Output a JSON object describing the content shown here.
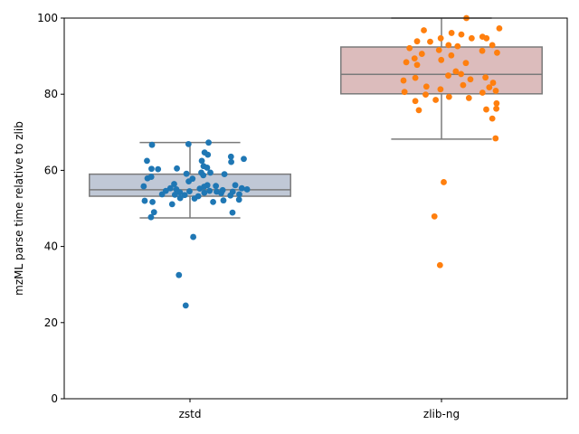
{
  "chart_data": {
    "type": "box",
    "title": "",
    "xlabel": "",
    "ylabel": "mzML parse time relative to zlib",
    "ylim": [
      0,
      100
    ],
    "yticks": [
      0,
      20,
      40,
      60,
      80,
      100
    ],
    "grid": false,
    "categories": [
      "zstd",
      "zlib-ng"
    ],
    "series": [
      {
        "category": "zstd",
        "box_color": "#c0c8d6",
        "point_color": "#1f77b4",
        "whisker_low": 47.5,
        "q1": 53.2,
        "median": 54.9,
        "q3": 59.0,
        "whisker_high": 67.3,
        "points": [
          [
            -0.151,
            66.7
          ],
          [
            -0.006,
            66.9
          ],
          [
            0.074,
            67.3
          ],
          [
            0.071,
            64.1
          ],
          [
            0.058,
            64.7
          ],
          [
            0.163,
            63.6
          ],
          [
            0.214,
            63.0
          ],
          [
            -0.171,
            62.5
          ],
          [
            0.164,
            62.2
          ],
          [
            0.047,
            62.5
          ],
          [
            0.054,
            61.1
          ],
          [
            0.068,
            60.7
          ],
          [
            -0.052,
            60.5
          ],
          [
            -0.127,
            60.3
          ],
          [
            -0.153,
            60.4
          ],
          [
            0.045,
            59.4
          ],
          [
            -0.014,
            59.1
          ],
          [
            0.081,
            59.4
          ],
          [
            0.137,
            59.0
          ],
          [
            0.053,
            58.7
          ],
          [
            -0.154,
            58.3
          ],
          [
            -0.169,
            57.9
          ],
          [
            0.01,
            57.8
          ],
          [
            -0.005,
            57.1
          ],
          [
            -0.063,
            56.4
          ],
          [
            0.069,
            56.1
          ],
          [
            0.103,
            55.9
          ],
          [
            0.18,
            56.1
          ],
          [
            -0.184,
            55.8
          ],
          [
            0.056,
            55.7
          ],
          [
            -0.078,
            55.3
          ],
          [
            0.039,
            55.2
          ],
          [
            0.206,
            55.3
          ],
          [
            0.227,
            55.0
          ],
          [
            -0.054,
            55.0
          ],
          [
            -0.096,
            54.6
          ],
          [
            0.13,
            54.8
          ],
          [
            0.078,
            54.6
          ],
          [
            -0.002,
            54.5
          ],
          [
            0.106,
            54.4
          ],
          [
            0.17,
            54.4
          ],
          [
            -0.04,
            54.2
          ],
          [
            0.057,
            54.1
          ],
          [
            0.124,
            54.0
          ],
          [
            -0.06,
            53.6
          ],
          [
            -0.111,
            53.7
          ],
          [
            0.196,
            53.7
          ],
          [
            -0.021,
            53.5
          ],
          [
            0.161,
            53.4
          ],
          [
            0.033,
            53.2
          ],
          [
            -0.039,
            52.7
          ],
          [
            0.018,
            52.6
          ],
          [
            0.195,
            52.3
          ],
          [
            -0.18,
            52.0
          ],
          [
            -0.149,
            51.7
          ],
          [
            0.092,
            51.7
          ],
          [
            0.133,
            52.1
          ],
          [
            -0.071,
            51.1
          ],
          [
            0.169,
            48.9
          ],
          [
            -0.143,
            49.0
          ],
          [
            -0.155,
            47.7
          ],
          [
            0.013,
            42.5
          ],
          [
            -0.044,
            32.5
          ],
          [
            -0.017,
            24.5
          ]
        ]
      },
      {
        "category": "zlib-ng",
        "box_color": "#dcbcbc",
        "point_color": "#ff7f0e",
        "whisker_low": 68.2,
        "q1": 80.1,
        "median": 85.2,
        "q3": 92.4,
        "whisker_high": 100.0,
        "points": [
          [
            0.099,
            100.0
          ],
          [
            0.23,
            97.3
          ],
          [
            -0.07,
            96.8
          ],
          [
            0.04,
            96.1
          ],
          [
            0.079,
            95.7
          ],
          [
            0.163,
            95.1
          ],
          [
            -0.003,
            94.7
          ],
          [
            0.12,
            94.7
          ],
          [
            0.179,
            94.7
          ],
          [
            -0.097,
            93.9
          ],
          [
            -0.045,
            93.8
          ],
          [
            0.028,
            92.9
          ],
          [
            0.202,
            92.9
          ],
          [
            0.064,
            92.6
          ],
          [
            -0.127,
            92.1
          ],
          [
            -0.01,
            91.6
          ],
          [
            0.162,
            91.4
          ],
          [
            0.221,
            90.9
          ],
          [
            -0.078,
            90.6
          ],
          [
            0.039,
            90.2
          ],
          [
            -0.107,
            89.4
          ],
          [
            -0.001,
            89.0
          ],
          [
            -0.14,
            88.4
          ],
          [
            0.097,
            88.2
          ],
          [
            -0.097,
            87.7
          ],
          [
            0.057,
            86.0
          ],
          [
            0.078,
            85.3
          ],
          [
            0.027,
            84.9
          ],
          [
            0.175,
            84.4
          ],
          [
            -0.104,
            84.3
          ],
          [
            0.115,
            83.9
          ],
          [
            -0.151,
            83.6
          ],
          [
            0.205,
            83.0
          ],
          [
            0.086,
            82.4
          ],
          [
            -0.06,
            82.0
          ],
          [
            0.19,
            81.8
          ],
          [
            -0.004,
            81.3
          ],
          [
            0.216,
            80.9
          ],
          [
            -0.147,
            80.6
          ],
          [
            0.163,
            80.4
          ],
          [
            -0.063,
            79.9
          ],
          [
            0.03,
            79.3
          ],
          [
            0.109,
            79.0
          ],
          [
            -0.023,
            78.5
          ],
          [
            -0.104,
            78.2
          ],
          [
            0.219,
            77.6
          ],
          [
            0.218,
            76.2
          ],
          [
            -0.09,
            75.8
          ],
          [
            0.178,
            76.0
          ],
          [
            0.202,
            73.6
          ],
          [
            0.215,
            68.4
          ],
          [
            0.009,
            56.9
          ],
          [
            -0.028,
            47.9
          ],
          [
            -0.006,
            35.1
          ]
        ]
      }
    ]
  }
}
